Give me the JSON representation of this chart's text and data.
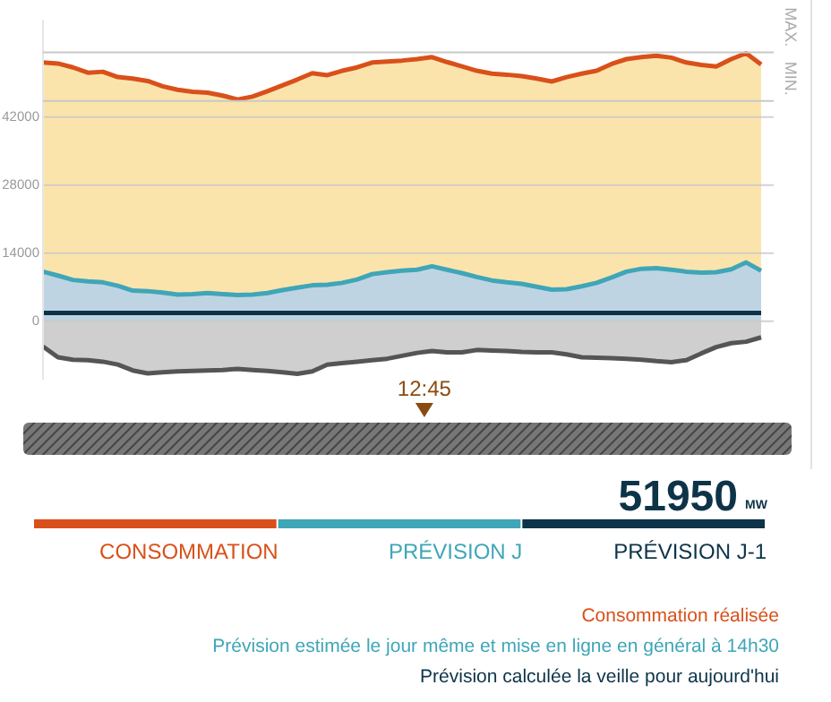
{
  "chart_data": {
    "type": "area",
    "categories": [
      null,
      null,
      null,
      null,
      null,
      null,
      null,
      null,
      null,
      null,
      null,
      null,
      null,
      null,
      null,
      null,
      null,
      null,
      null,
      null,
      null,
      null,
      null,
      null,
      null,
      null,
      null,
      null,
      null,
      null,
      null,
      null,
      null,
      null,
      null,
      null,
      null,
      null,
      null,
      null,
      null,
      null,
      null,
      null,
      null,
      null,
      null,
      null,
      null
    ],
    "ylim": [
      -12000,
      62000
    ],
    "yticks": [
      0,
      14000,
      28000,
      42000
    ],
    "grid": "y",
    "ref_lines": [
      {
        "axis": "y",
        "value": 55300,
        "label": "MAX."
      },
      {
        "axis": "y",
        "value": 45300,
        "label": "MIN."
      }
    ],
    "annotations": [
      "12:45",
      "51950",
      "MW",
      "Consommation réalisée",
      "Prévision estimée le jour même et mise en ligne en général à 14h30",
      "Prévision calculée la veille pour aujourd'hui"
    ],
    "series": [
      {
        "name": "CONSOMMATION",
        "color": "#d9501a",
        "values": [
          53200,
          53000,
          52200,
          51100,
          51300,
          50200,
          49900,
          49400,
          48300,
          47600,
          47200,
          47000,
          46400,
          45600,
          46200,
          47300,
          48500,
          49700,
          51000,
          50600,
          51500,
          52200,
          53200,
          53400,
          53600,
          53900,
          54300,
          53300,
          52400,
          51500,
          50900,
          50700,
          50400,
          49900,
          49300,
          50200,
          50900,
          51500,
          52900,
          53900,
          54300,
          54600,
          54200,
          53200,
          52700,
          52400,
          53900,
          55100,
          52800
        ]
      },
      {
        "name": "PRÉVISION J",
        "color": "#3fa6b8",
        "values": [
          10200,
          9400,
          8500,
          8200,
          8000,
          7300,
          6300,
          6200,
          5900,
          5500,
          5600,
          5800,
          5600,
          5400,
          5500,
          5800,
          6400,
          6900,
          7400,
          7500,
          7900,
          8600,
          9700,
          10100,
          10400,
          10600,
          11300,
          10600,
          9900,
          9100,
          8400,
          8000,
          7700,
          7100,
          6500,
          6600,
          7200,
          7900,
          9000,
          10200,
          10800,
          10900,
          10600,
          10200,
          10000,
          10100,
          10700,
          12100,
          10400
        ]
      },
      {
        "name": "PRÉVISION J-1",
        "color": "#0d3349",
        "type": "line",
        "values": [
          1700,
          1700,
          1700,
          1700,
          1700,
          1700,
          1700,
          1700,
          1700,
          1700,
          1700,
          1700,
          1700,
          1700,
          1700,
          1700,
          1700,
          1700,
          1700,
          1700,
          1700,
          1700,
          1700,
          1700,
          1700,
          1700,
          1700,
          1700,
          1700,
          1700,
          1700,
          1700,
          1700,
          1700,
          1700,
          1700,
          1700,
          1700,
          1700,
          1700,
          1700,
          1700,
          1700,
          1700,
          1700,
          1700,
          1700,
          1700,
          1700
        ]
      },
      {
        "color": "#555555",
        "values": [
          -5200,
          -7400,
          -7900,
          -8000,
          -8300,
          -8900,
          -10100,
          -10700,
          -10500,
          -10300,
          -10200,
          -10100,
          -10000,
          -9800,
          -10000,
          -10200,
          -10500,
          -10800,
          -10300,
          -8900,
          -8600,
          -8300,
          -8000,
          -7700,
          -7100,
          -6500,
          -6100,
          -6400,
          -6400,
          -5900,
          -6000,
          -6100,
          -6300,
          -6400,
          -6400,
          -6800,
          -7400,
          -7500,
          -7600,
          -7700,
          -7900,
          -8200,
          -8400,
          -8000,
          -6600,
          -5300,
          -4500,
          -4200,
          -3300
        ]
      }
    ]
  }
}
